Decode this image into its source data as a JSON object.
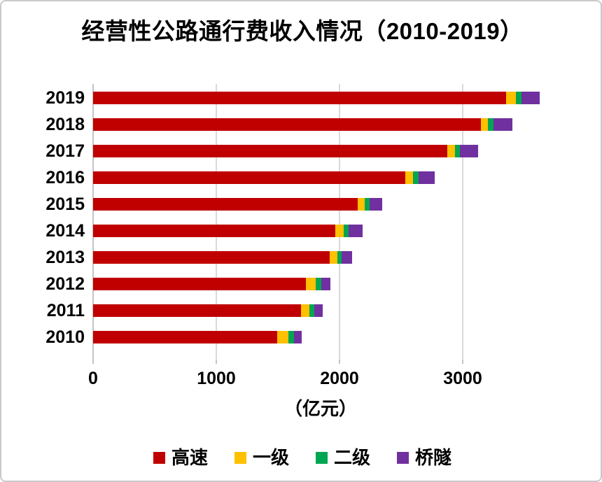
{
  "title": "经营性公路通行费收入情况（2010-2019）",
  "chart_data": {
    "type": "bar",
    "orientation": "horizontal",
    "stacked": true,
    "title": "经营性公路通行费收入情况（2010-2019）",
    "xlabel": "（亿元）",
    "ylabel": "",
    "categories": [
      "2019",
      "2018",
      "2017",
      "2016",
      "2015",
      "2014",
      "2013",
      "2012",
      "2011",
      "2010"
    ],
    "series": [
      {
        "name": "高速",
        "color": "#C00000",
        "values": [
          3355,
          3150,
          2875,
          2535,
          2145,
          1965,
          1920,
          1725,
          1685,
          1495
        ]
      },
      {
        "name": "一级",
        "color": "#FFC000",
        "values": [
          75,
          55,
          65,
          60,
          60,
          70,
          65,
          80,
          70,
          90
        ]
      },
      {
        "name": "二级",
        "color": "#00A651",
        "values": [
          45,
          45,
          35,
          45,
          40,
          40,
          30,
          45,
          40,
          45
        ]
      },
      {
        "name": "桥隧",
        "color": "#7030A0",
        "values": [
          150,
          155,
          150,
          130,
          100,
          110,
          85,
          75,
          70,
          65
        ]
      }
    ],
    "x_ticks": [
      0,
      1000,
      2000,
      3000
    ],
    "x_tick_labels": [
      "0",
      "1000",
      "2000",
      "3000"
    ],
    "xlim": [
      0,
      4000
    ],
    "grid": true,
    "legend_position": "bottom",
    "grid_color": "#d9d9d9",
    "axis_color": "#c4c4c4"
  }
}
